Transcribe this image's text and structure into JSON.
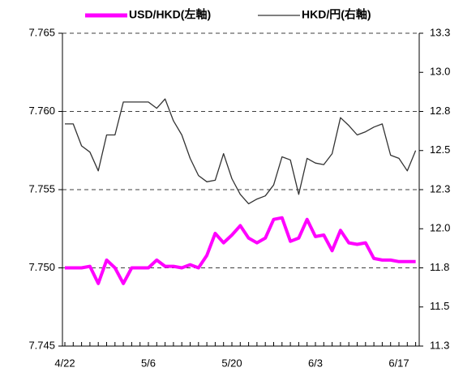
{
  "chart_data": {
    "type": "line",
    "categories": [
      "4/22",
      null,
      null,
      null,
      null,
      null,
      null,
      null,
      null,
      null,
      "5/6",
      null,
      null,
      null,
      null,
      null,
      null,
      null,
      null,
      null,
      "5/20",
      null,
      null,
      null,
      null,
      null,
      null,
      null,
      null,
      null,
      "6/3",
      null,
      null,
      null,
      null,
      null,
      null,
      null,
      null,
      null,
      "6/17",
      null,
      null
    ],
    "series": [
      {
        "name": "USD/HKD(左軸)",
        "color": "#ff00ff",
        "axis": "y",
        "values": [
          7.75,
          7.75,
          7.75,
          7.7501,
          7.749,
          7.7505,
          7.75,
          7.749,
          7.75,
          7.75,
          7.75,
          7.7505,
          7.7501,
          7.7501,
          7.75,
          7.7502,
          7.75,
          7.7508,
          7.7522,
          7.7516,
          7.7521,
          7.7527,
          7.7519,
          7.7516,
          7.7519,
          7.7531,
          7.7532,
          7.7517,
          7.7519,
          7.7531,
          7.752,
          7.7521,
          7.7511,
          7.7524,
          7.7516,
          7.7515,
          7.7516,
          7.7506,
          7.7505,
          7.7505,
          7.7504,
          7.7504,
          7.7504
        ]
      },
      {
        "name": "HKD/円(右軸)",
        "color": "#333333",
        "axis": "y2",
        "values": [
          12.67,
          12.67,
          12.53,
          12.49,
          12.37,
          12.6,
          12.6,
          12.81,
          12.81,
          12.81,
          12.81,
          12.77,
          12.83,
          12.69,
          12.6,
          12.45,
          12.34,
          12.3,
          12.31,
          12.48,
          12.32,
          12.22,
          12.16,
          12.19,
          12.21,
          12.28,
          12.46,
          12.44,
          12.22,
          12.45,
          12.42,
          12.41,
          12.48,
          12.71,
          12.66,
          12.6,
          12.62,
          12.65,
          12.67,
          12.47,
          12.45,
          12.37,
          12.5
        ]
      }
    ],
    "ylim": [
      7.745,
      7.765
    ],
    "yticks": [
      7.745,
      {
        "value": 7.75,
        "label": "7.750"
      },
      7.755,
      {
        "value": 7.76,
        "label": "7.760"
      },
      7.765
    ],
    "y2lim": [
      11.25,
      13.25
    ],
    "y2ticks": [
      {
        "value": 11.25,
        "label": "11.3"
      },
      11.5,
      {
        "value": 11.75,
        "label": "11.8"
      },
      {
        "value": 12.0,
        "label": "12.0"
      },
      {
        "value": 12.25,
        "label": "12.3"
      },
      12.5,
      {
        "value": 12.75,
        "label": "12.8"
      },
      {
        "value": 13.0,
        "label": "13.0"
      },
      {
        "value": 13.25,
        "label": "13.3"
      }
    ],
    "grid": true,
    "legend": "top"
  }
}
